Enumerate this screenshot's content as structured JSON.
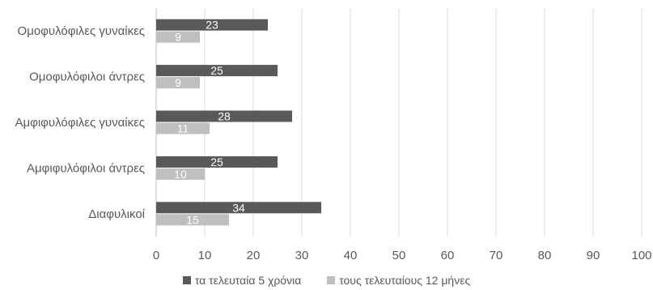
{
  "chart_data": {
    "type": "bar",
    "orientation": "horizontal",
    "categories": [
      "Ομοφυλόφιλες γυναίκες",
      "Ομοφυλόφιλοι άντρες",
      "Αμφιφυλόφιλες γυναίκες",
      "Αμφιφυλόφιλοι άντρες",
      "Διαφυλικοί"
    ],
    "series": [
      {
        "name": "τα τελευταία 5 χρόνια",
        "values": [
          23,
          25,
          28,
          25,
          34
        ],
        "color": "#595959",
        "label_color": "#ffffff"
      },
      {
        "name": "τους τελευταίους 12 μήνες",
        "values": [
          9,
          9,
          11,
          10,
          15
        ],
        "color": "#bfbfbf",
        "label_color": "#ffffff"
      }
    ],
    "x_ticks": [
      "0",
      "10",
      "20",
      "30",
      "40",
      "50",
      "60",
      "70",
      "80",
      "90",
      "100"
    ],
    "xlim": [
      0,
      100
    ],
    "grid": true,
    "legend_position": "bottom",
    "title": "",
    "xlabel": "",
    "ylabel": ""
  }
}
